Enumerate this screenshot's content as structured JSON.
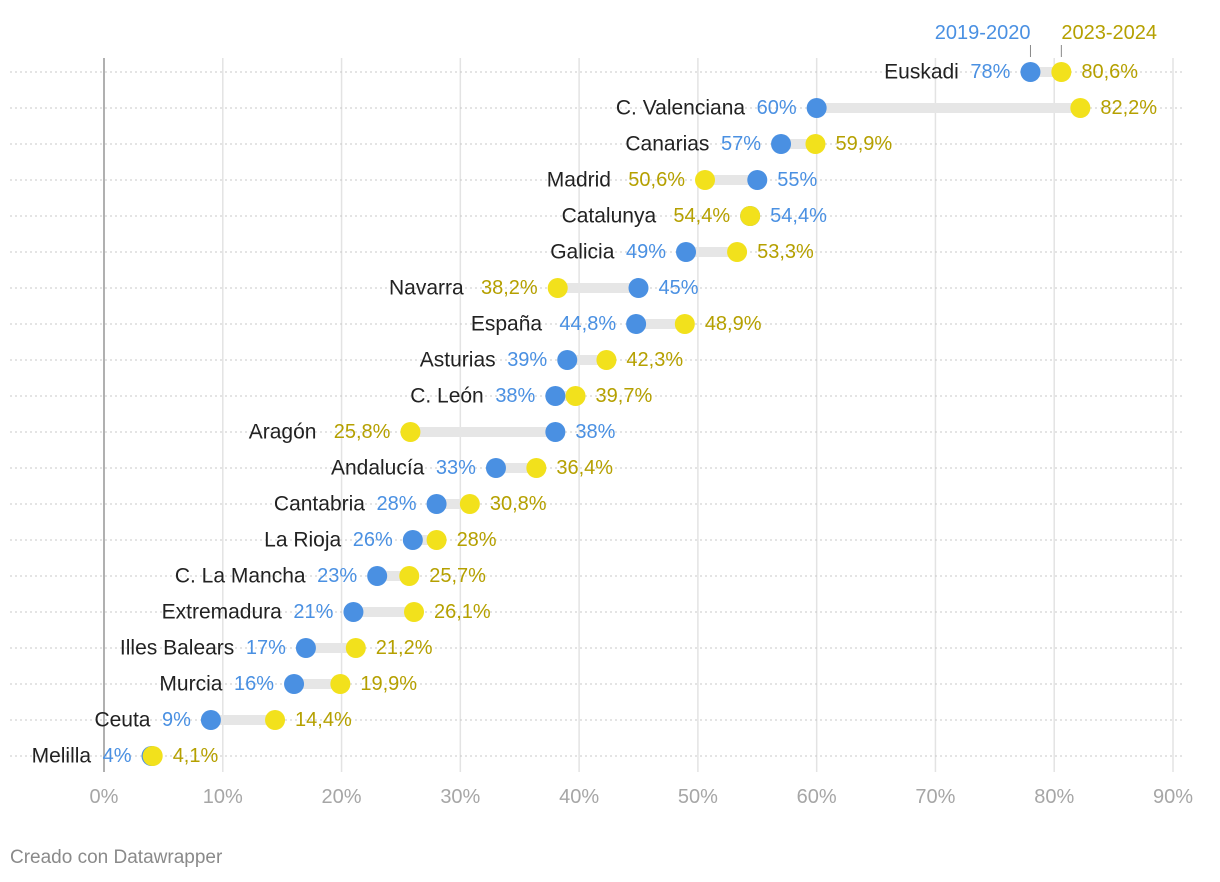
{
  "chart_data": {
    "type": "dumbbell",
    "legend": [
      "2019-2020",
      "2023-2024"
    ],
    "colors": {
      "start": "#4a90e2",
      "end": "#f2e11c",
      "start_label": "#4a90e2",
      "end_label": "#b5a000",
      "connector": "#e6e6e6"
    },
    "xlim": [
      0,
      90
    ],
    "xticks": [
      "0%",
      "10%",
      "20%",
      "30%",
      "40%",
      "50%",
      "60%",
      "70%",
      "80%",
      "90%"
    ],
    "rows": [
      {
        "name": "Euskadi",
        "v1": 78,
        "v2": 80.6,
        "l1": "78%",
        "l2": "80,6%"
      },
      {
        "name": "C. Valenciana",
        "v1": 60,
        "v2": 82.2,
        "l1": "60%",
        "l2": "82,2%"
      },
      {
        "name": "Canarias",
        "v1": 57,
        "v2": 59.9,
        "l1": "57%",
        "l2": "59,9%"
      },
      {
        "name": "Madrid",
        "v1": 55,
        "v2": 50.6,
        "l1": "55%",
        "l2": "50,6%"
      },
      {
        "name": "Catalunya",
        "v1": 54.4,
        "v2": 54.4,
        "l1": "54,4%",
        "l2": "54,4%"
      },
      {
        "name": "Galicia",
        "v1": 49,
        "v2": 53.3,
        "l1": "49%",
        "l2": "53,3%"
      },
      {
        "name": "Navarra",
        "v1": 45,
        "v2": 38.2,
        "l1": "45%",
        "l2": "38,2%"
      },
      {
        "name": "España",
        "v1": 44.8,
        "v2": 48.9,
        "l1": "44,8%",
        "l2": "48,9%"
      },
      {
        "name": "Asturias",
        "v1": 39,
        "v2": 42.3,
        "l1": "39%",
        "l2": "42,3%"
      },
      {
        "name": "C. León",
        "v1": 38,
        "v2": 39.7,
        "l1": "38%",
        "l2": "39,7%"
      },
      {
        "name": "Aragón",
        "v1": 38,
        "v2": 25.8,
        "l1": "38%",
        "l2": "25,8%"
      },
      {
        "name": "Andalucía",
        "v1": 33,
        "v2": 36.4,
        "l1": "33%",
        "l2": "36,4%"
      },
      {
        "name": "Cantabria",
        "v1": 28,
        "v2": 30.8,
        "l1": "28%",
        "l2": "30,8%"
      },
      {
        "name": "La Rioja",
        "v1": 26,
        "v2": 28,
        "l1": "26%",
        "l2": "28%"
      },
      {
        "name": "C. La Mancha",
        "v1": 23,
        "v2": 25.7,
        "l1": "23%",
        "l2": "25,7%"
      },
      {
        "name": "Extremadura",
        "v1": 21,
        "v2": 26.1,
        "l1": "21%",
        "l2": "26,1%"
      },
      {
        "name": "Illes Balears",
        "v1": 17,
        "v2": 21.2,
        "l1": "17%",
        "l2": "21,2%"
      },
      {
        "name": "Murcia",
        "v1": 16,
        "v2": 19.9,
        "l1": "16%",
        "l2": "19,9%"
      },
      {
        "name": "Ceuta",
        "v1": 9,
        "v2": 14.4,
        "l1": "9%",
        "l2": "14,4%"
      },
      {
        "name": "Melilla",
        "v1": 4,
        "v2": 4.1,
        "l1": "4%",
        "l2": "4,1%"
      }
    ]
  },
  "credit": "Creado con Datawrapper"
}
